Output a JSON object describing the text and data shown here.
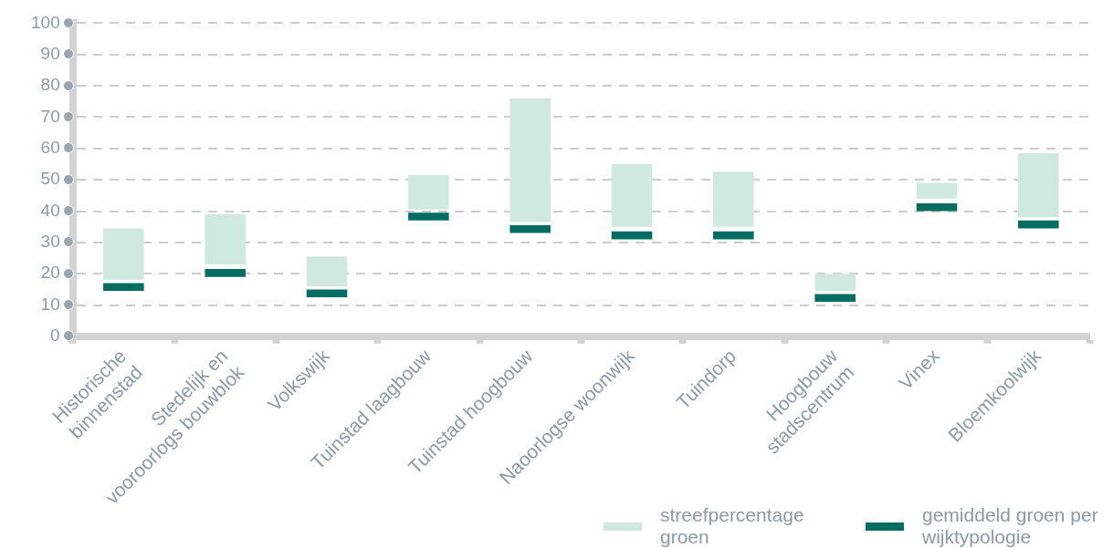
{
  "chart_data": {
    "type": "bar",
    "categories": [
      "Historische\nbinnenstad",
      "Stedelijk en\nvooroorlogs bouwblok",
      "Volkswijk",
      "Tuinstad laagbouw",
      "Tuinstad hoogbouw",
      "Naoorlogse woonwijk",
      "Tuindorp",
      "Hoogbouw\nstadscentrum",
      "Vinex",
      "Bloemkoolwijk"
    ],
    "series": [
      {
        "name": "streefpercentage groen",
        "color": "#cfe9e0",
        "base": [
          18,
          23,
          16,
          40.5,
          36.5,
          35,
          35,
          14.5,
          44,
          38
        ],
        "values": [
          16.5,
          16,
          9.5,
          11,
          39.5,
          20,
          17.5,
          5.5,
          5,
          20.5
        ]
      },
      {
        "name": "gemiddeld groen per wijktypologie",
        "color": "#066d62",
        "base": [
          14.5,
          19,
          12.5,
          37,
          33,
          31,
          31,
          11,
          40,
          34.5
        ],
        "values": [
          2.5,
          2.5,
          2.5,
          2.5,
          2.5,
          2.5,
          2.5,
          2.5,
          2.5,
          2.5
        ]
      }
    ],
    "ylim": [
      0,
      100
    ],
    "yticks": [
      0,
      10,
      20,
      30,
      40,
      50,
      60,
      70,
      80,
      90,
      100
    ],
    "grid": "y",
    "legend": "bottom right"
  }
}
